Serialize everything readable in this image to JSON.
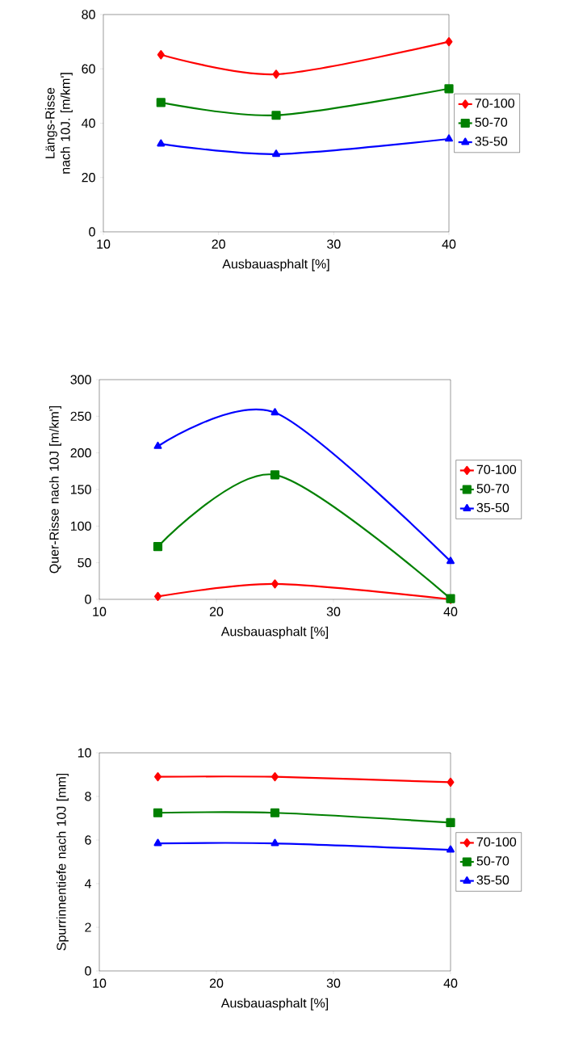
{
  "chart_data": [
    {
      "type": "line",
      "xlabel": "Ausbauasphalt [%]",
      "ylabel": "Längs-Risse nach 10J. [m/km']",
      "x": [
        15,
        25,
        40
      ],
      "xlim": [
        10,
        40
      ],
      "xticks": [
        10,
        20,
        30,
        40
      ],
      "ylim": [
        0,
        80
      ],
      "yticks": [
        0,
        20,
        40,
        60,
        80
      ],
      "legend": "right",
      "series": [
        {
          "name": "70-100",
          "color": "#ff0000",
          "marker": "diamond",
          "values": [
            65.2,
            58,
            70
          ]
        },
        {
          "name": "50-70",
          "color": "#008000",
          "marker": "square",
          "values": [
            47.6,
            42.9,
            52.7
          ]
        },
        {
          "name": "35-50",
          "color": "#0000ff",
          "marker": "triangle",
          "values": [
            32.4,
            28.6,
            34.2
          ]
        }
      ]
    },
    {
      "type": "line",
      "xlabel": "Ausbauasphalt [%]",
      "ylabel": "Quer-Risse nach 10J  [m/km']",
      "x": [
        15,
        25,
        40
      ],
      "xlim": [
        10,
        40
      ],
      "xticks": [
        10,
        20,
        30,
        40
      ],
      "ylim": [
        0,
        300
      ],
      "yticks": [
        0,
        50,
        100,
        150,
        200,
        250,
        300
      ],
      "legend": "right",
      "series": [
        {
          "name": "70-100",
          "color": "#ff0000",
          "marker": "diamond",
          "values": [
            4,
            21,
            0
          ]
        },
        {
          "name": "50-70",
          "color": "#008000",
          "marker": "square",
          "values": [
            72,
            170,
            1
          ]
        },
        {
          "name": "35-50",
          "color": "#0000ff",
          "marker": "triangle",
          "values": [
            209,
            255,
            52
          ]
        }
      ]
    },
    {
      "type": "line",
      "xlabel": "Ausbauasphalt [%]",
      "ylabel": "Spurrinnentiefe nach 10J  [mm]",
      "x": [
        15,
        25,
        40
      ],
      "xlim": [
        10,
        40
      ],
      "xticks": [
        10,
        20,
        30,
        40
      ],
      "ylim": [
        0,
        10
      ],
      "yticks": [
        0,
        2,
        4,
        6,
        8,
        10
      ],
      "legend": "right",
      "series": [
        {
          "name": "70-100",
          "color": "#ff0000",
          "marker": "diamond",
          "values": [
            8.9,
            8.9,
            8.65
          ]
        },
        {
          "name": "50-70",
          "color": "#008000",
          "marker": "square",
          "values": [
            7.25,
            7.25,
            6.8
          ]
        },
        {
          "name": "35-50",
          "color": "#0000ff",
          "marker": "triangle",
          "values": [
            5.85,
            5.85,
            5.55
          ]
        }
      ]
    }
  ]
}
